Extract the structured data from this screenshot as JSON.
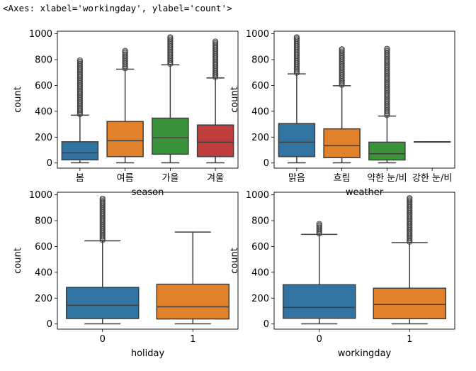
{
  "header_text": "<Axes: xlabel='workingday', ylabel='count'>",
  "chart_data": [
    {
      "type": "box",
      "xlabel": "season",
      "ylabel": "count",
      "ylim": [
        -40,
        1020
      ],
      "yticks": [
        0,
        200,
        400,
        600,
        800,
        1000
      ],
      "categories": [
        "봄",
        "여름",
        "가을",
        "겨울"
      ],
      "colors": [
        "#3274a1",
        "#e1812c",
        "#3a923a",
        "#c03d3e"
      ],
      "boxes": [
        {
          "whislo": 1,
          "q1": 24,
          "med": 78,
          "q3": 164,
          "whishi": 370,
          "flier_min": 375,
          "flier_max": 801
        },
        {
          "whislo": 1,
          "q1": 49,
          "med": 172,
          "q3": 321,
          "whishi": 726,
          "flier_min": 730,
          "flier_max": 873
        },
        {
          "whislo": 1,
          "q1": 68,
          "med": 195,
          "q3": 347,
          "whishi": 760,
          "flier_min": 765,
          "flier_max": 977
        },
        {
          "whislo": 1,
          "q1": 49,
          "med": 161,
          "q3": 294,
          "whishi": 658,
          "flier_min": 662,
          "flier_max": 948
        }
      ]
    },
    {
      "type": "box",
      "xlabel": "weather",
      "ylabel": "count",
      "ylim": [
        -40,
        1020
      ],
      "yticks": [
        0,
        200,
        400,
        600,
        800,
        1000
      ],
      "categories": [
        "맑음",
        "흐림",
        "약한 눈/비",
        "강한 눈/비"
      ],
      "colors": [
        "#3274a1",
        "#e1812c",
        "#3a923a",
        "#c03d3e"
      ],
      "boxes": [
        {
          "whislo": 1,
          "q1": 49,
          "med": 161,
          "q3": 305,
          "whishi": 690,
          "flier_min": 695,
          "flier_max": 977
        },
        {
          "whislo": 1,
          "q1": 41,
          "med": 134,
          "q3": 264,
          "whishi": 598,
          "flier_min": 602,
          "flier_max": 890
        },
        {
          "whislo": 1,
          "q1": 23,
          "med": 71,
          "q3": 161,
          "whishi": 363,
          "flier_min": 368,
          "flier_max": 891
        },
        {
          "whislo": 164,
          "q1": 164,
          "med": 164,
          "q3": 164,
          "whishi": 164,
          "flier_min": null,
          "flier_max": null
        }
      ]
    },
    {
      "type": "box",
      "xlabel": "holiday",
      "ylabel": "count",
      "ylim": [
        -40,
        1020
      ],
      "yticks": [
        0,
        200,
        400,
        600,
        800,
        1000
      ],
      "categories": [
        "0",
        "1"
      ],
      "colors": [
        "#3274a1",
        "#e1812c"
      ],
      "boxes": [
        {
          "whislo": 1,
          "q1": 42,
          "med": 145,
          "q3": 283,
          "whishi": 644,
          "flier_min": 648,
          "flier_max": 977
        },
        {
          "whislo": 1,
          "q1": 39,
          "med": 133,
          "q3": 308,
          "whishi": 712,
          "flier_min": null,
          "flier_max": null
        }
      ]
    },
    {
      "type": "box",
      "xlabel": "workingday",
      "ylabel": "count",
      "ylim": [
        -40,
        1020
      ],
      "yticks": [
        0,
        200,
        400,
        600,
        800,
        1000
      ],
      "categories": [
        "0",
        "1"
      ],
      "colors": [
        "#3274a1",
        "#e1812c"
      ],
      "boxes": [
        {
          "whislo": 1,
          "q1": 44,
          "med": 128,
          "q3": 304,
          "whishi": 694,
          "flier_min": 698,
          "flier_max": 783
        },
        {
          "whislo": 1,
          "q1": 41,
          "med": 151,
          "q3": 277,
          "whishi": 630,
          "flier_min": 634,
          "flier_max": 977
        }
      ]
    }
  ]
}
